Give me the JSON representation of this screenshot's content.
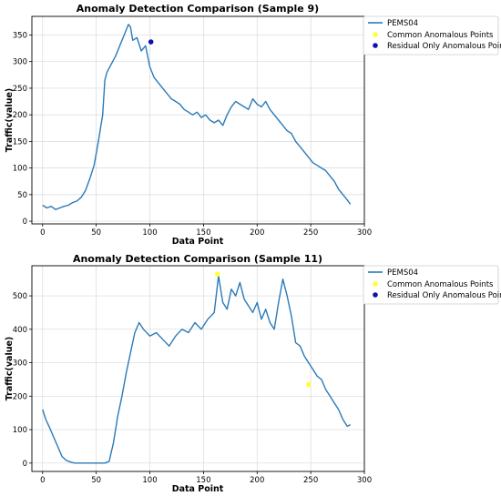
{
  "chart_data": [
    {
      "type": "line",
      "title": "Anomaly Detection Comparison (Sample 9)",
      "xlabel": "Data Point",
      "ylabel": "Traffic(value)",
      "xlim": [
        -10,
        300
      ],
      "ylim": [
        -5,
        385
      ],
      "xticks": [
        0,
        50,
        100,
        150,
        200,
        250,
        300
      ],
      "yticks": [
        0,
        50,
        100,
        150,
        200,
        250,
        300,
        350
      ],
      "grid": true,
      "legend_position": "outside-right",
      "legend": [
        "PEMS04",
        "Common Anomalous Points",
        "Residual Only Anomalous Points"
      ],
      "colors": {
        "line": "#2a7ab8",
        "common": "#ffff33",
        "residual": "#1010b0"
      },
      "series": [
        {
          "name": "PEMS04",
          "x": [
            0,
            4,
            8,
            12,
            16,
            20,
            24,
            28,
            32,
            36,
            40,
            44,
            48,
            52,
            56,
            58,
            60,
            64,
            68,
            72,
            76,
            80,
            82,
            84,
            88,
            92,
            96,
            100,
            104,
            108,
            112,
            116,
            120,
            124,
            128,
            132,
            136,
            140,
            144,
            148,
            152,
            156,
            160,
            164,
            168,
            172,
            176,
            180,
            184,
            188,
            192,
            196,
            200,
            204,
            208,
            212,
            216,
            220,
            224,
            228,
            232,
            236,
            240,
            244,
            248,
            252,
            256,
            260,
            264,
            268,
            272,
            276,
            280,
            284,
            287
          ],
          "y": [
            30,
            25,
            28,
            22,
            25,
            28,
            30,
            35,
            38,
            45,
            58,
            80,
            105,
            150,
            200,
            265,
            280,
            295,
            310,
            330,
            350,
            370,
            365,
            340,
            345,
            320,
            330,
            290,
            270,
            260,
            250,
            240,
            230,
            225,
            220,
            210,
            205,
            200,
            205,
            195,
            200,
            190,
            185,
            190,
            180,
            200,
            215,
            225,
            220,
            215,
            210,
            230,
            220,
            215,
            225,
            210,
            200,
            190,
            180,
            170,
            165,
            150,
            140,
            130,
            120,
            110,
            105,
            100,
            95,
            85,
            75,
            60,
            50,
            40,
            32
          ]
        },
        {
          "name": "Residual Only Anomalous Points",
          "x": [
            101
          ],
          "y": [
            337
          ]
        }
      ]
    },
    {
      "type": "line",
      "title": "Anomaly Detection Comparison (Sample 11)",
      "xlabel": "Data Point",
      "ylabel": "Traffic(value)",
      "xlim": [
        -10,
        300
      ],
      "ylim": [
        -25,
        590
      ],
      "xticks": [
        0,
        50,
        100,
        150,
        200,
        250,
        300
      ],
      "yticks": [
        0,
        100,
        200,
        300,
        400,
        500
      ],
      "grid": true,
      "legend_position": "outside-right",
      "legend": [
        "PEMS04",
        "Common Anomalous Points",
        "Residual Only Anomalous Points"
      ],
      "colors": {
        "line": "#2a7ab8",
        "common": "#ffff33",
        "residual": "#1010b0"
      },
      "series": [
        {
          "name": "PEMS04",
          "x": [
            0,
            3,
            6,
            10,
            14,
            18,
            22,
            26,
            30,
            36,
            42,
            48,
            54,
            58,
            62,
            66,
            70,
            74,
            78,
            82,
            86,
            90,
            94,
            100,
            106,
            112,
            118,
            124,
            130,
            136,
            142,
            148,
            154,
            160,
            164,
            168,
            172,
            176,
            180,
            184,
            188,
            192,
            196,
            200,
            204,
            208,
            212,
            216,
            220,
            224,
            228,
            232,
            236,
            240,
            244,
            248,
            252,
            256,
            260,
            264,
            268,
            272,
            276,
            280,
            284,
            287
          ],
          "y": [
            160,
            130,
            110,
            80,
            50,
            20,
            8,
            3,
            0,
            0,
            0,
            0,
            0,
            0,
            5,
            60,
            140,
            200,
            270,
            330,
            390,
            420,
            400,
            380,
            390,
            370,
            350,
            380,
            400,
            390,
            420,
            400,
            430,
            450,
            560,
            480,
            460,
            520,
            500,
            540,
            490,
            470,
            450,
            480,
            430,
            460,
            420,
            400,
            480,
            550,
            500,
            440,
            360,
            350,
            320,
            300,
            280,
            260,
            250,
            220,
            200,
            180,
            160,
            130,
            110,
            115
          ]
        },
        {
          "name": "Common Anomalous Points",
          "x": [
            163,
            248
          ],
          "y": [
            565,
            235
          ]
        },
        {
          "name": "Residual Only Anomalous Points",
          "x": [],
          "y": []
        }
      ]
    }
  ]
}
